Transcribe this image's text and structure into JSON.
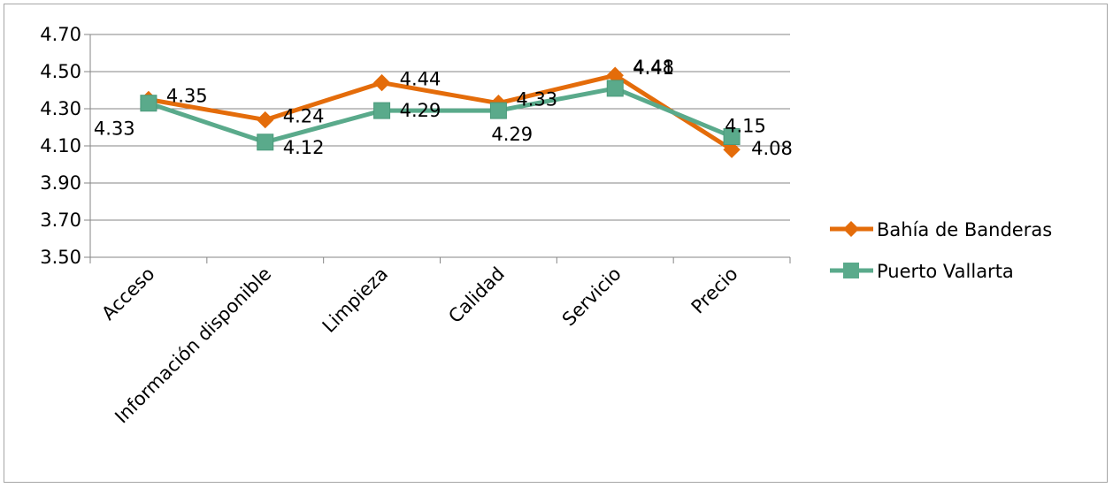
{
  "chart_data": {
    "type": "line",
    "categories": [
      "Acceso",
      "Información disponible",
      "Limpieza",
      "Calidad",
      "Servicio",
      "Precio"
    ],
    "ylim": [
      3.5,
      4.7
    ],
    "yticks": [
      "3.50",
      "3.70",
      "3.90",
      "4.10",
      "4.30",
      "4.50",
      "4.70"
    ],
    "grid": true,
    "legend_position": "right",
    "series": [
      {
        "name": "Bahía de Banderas",
        "color": "#e46c0a",
        "marker": "diamond",
        "values": [
          4.35,
          4.24,
          4.44,
          4.33,
          4.48,
          4.08
        ],
        "labels": [
          "4.35",
          "4.24",
          "4.44",
          "4.33",
          "4.48",
          "4.08"
        ]
      },
      {
        "name": "Puerto Vallarta",
        "color": "#5aaa8b",
        "marker": "square",
        "values": [
          4.33,
          4.12,
          4.29,
          4.29,
          4.41,
          4.15
        ],
        "labels": [
          "4.33",
          "4.12",
          "4.29",
          "4.29",
          "4.41",
          "4.15"
        ]
      }
    ]
  }
}
